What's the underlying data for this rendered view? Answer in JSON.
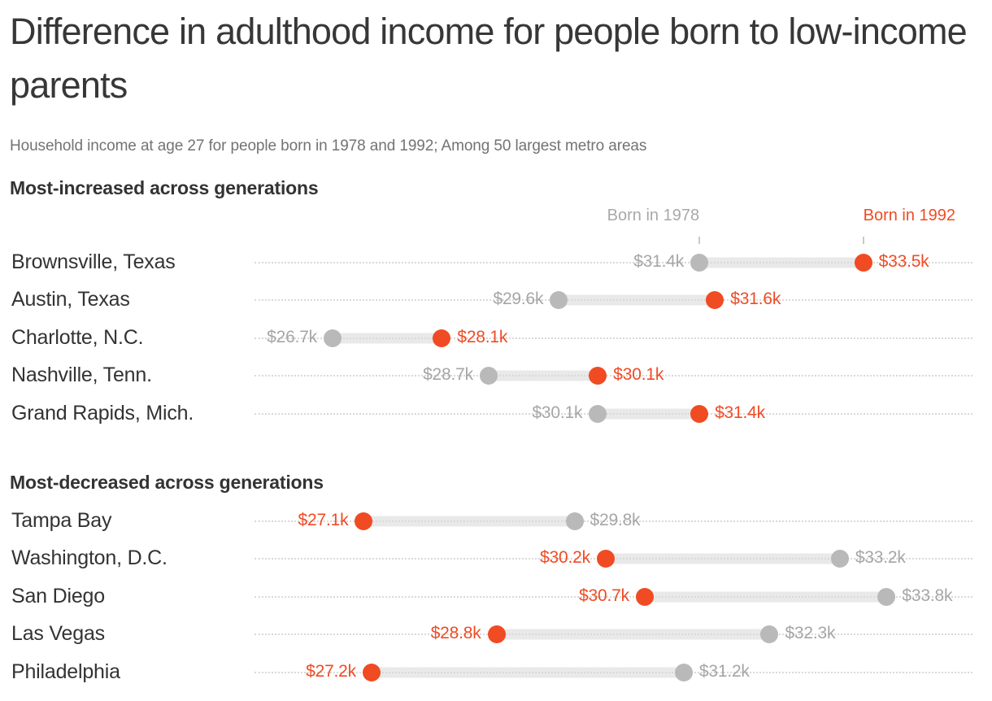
{
  "title": "Difference in adulthood income for people born to low-income parents",
  "subtitle": "Household income at age 27 for people born in 1978 and 1992; Among 50 largest metro areas",
  "legend": {
    "born_1978_label": "Born in 1978",
    "born_1992_label": "Born in 1992"
  },
  "colors": {
    "born_1978_dot": "#b9b9b9",
    "born_1992_dot": "#f04b23",
    "value_label_1978": "#a6a6a6",
    "value_label_1992": "#f04b23",
    "connector_bar": "#e9e9e9",
    "leader_dots": "#d9d9d9",
    "text_dark": "#333333"
  },
  "chart_data": {
    "type": "scatter",
    "variant": "dumbbell",
    "unit": "USD thousands",
    "xlim": [
      25.7,
      34.9
    ],
    "grid": "dotted-row-leaders",
    "legend_position": "above-first-row",
    "series_names": [
      "Born in 1978",
      "Born in 1992"
    ],
    "sections": [
      {
        "header": "Most-increased across generations",
        "rows": [
          {
            "city": "Brownsville, Texas",
            "born_1978": 31.4,
            "born_1992": 33.5,
            "label_1978": "$31.4k",
            "label_1992": "$33.5k"
          },
          {
            "city": "Austin, Texas",
            "born_1978": 29.6,
            "born_1992": 31.6,
            "label_1978": "$29.6k",
            "label_1992": "$31.6k"
          },
          {
            "city": "Charlotte, N.C.",
            "born_1978": 26.7,
            "born_1992": 28.1,
            "label_1978": "$26.7k",
            "label_1992": "$28.1k"
          },
          {
            "city": "Nashville, Tenn.",
            "born_1978": 28.7,
            "born_1992": 30.1,
            "label_1978": "$28.7k",
            "label_1992": "$30.1k"
          },
          {
            "city": "Grand Rapids, Mich.",
            "born_1978": 30.1,
            "born_1992": 31.4,
            "label_1978": "$30.1k",
            "label_1992": "$31.4k"
          }
        ]
      },
      {
        "header": "Most-decreased across generations",
        "rows": [
          {
            "city": "Tampa Bay",
            "born_1978": 29.8,
            "born_1992": 27.1,
            "label_1978": "$29.8k",
            "label_1992": "$27.1k"
          },
          {
            "city": "Washington, D.C.",
            "born_1978": 33.2,
            "born_1992": 30.2,
            "label_1978": "$33.2k",
            "label_1992": "$30.2k"
          },
          {
            "city": "San Diego",
            "born_1978": 33.8,
            "born_1992": 30.7,
            "label_1978": "$33.8k",
            "label_1992": "$30.7k"
          },
          {
            "city": "Las Vegas",
            "born_1978": 32.3,
            "born_1992": 28.8,
            "label_1978": "$32.3k",
            "label_1992": "$28.8k"
          },
          {
            "city": "Philadelphia",
            "born_1978": 31.2,
            "born_1992": 27.2,
            "label_1978": "$31.2k",
            "label_1992": "$27.2k"
          }
        ]
      }
    ]
  }
}
